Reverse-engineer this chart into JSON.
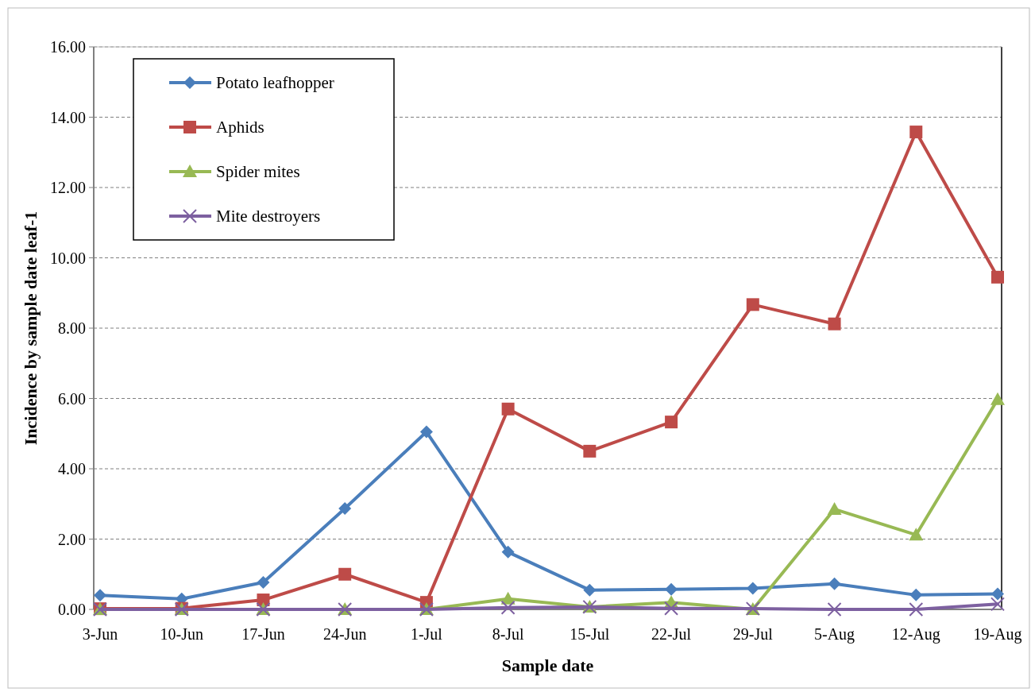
{
  "chart_data": {
    "type": "line",
    "xlabel": "Sample date",
    "ylabel": "Incidence by sample date leaf-1",
    "categories": [
      "3-Jun",
      "10-Jun",
      "17-Jun",
      "24-Jun",
      "1-Jul",
      "8-Jul",
      "15-Jul",
      "22-Jul",
      "29-Jul",
      "5-Aug",
      "12-Aug",
      "19-Aug"
    ],
    "series": [
      {
        "name": "Potato leafhopper",
        "color": "#4a7ebb",
        "marker": "diamond",
        "values": [
          0.4,
          0.3,
          0.77,
          2.87,
          5.05,
          1.63,
          0.55,
          0.57,
          0.6,
          0.73,
          0.41,
          0.44
        ]
      },
      {
        "name": "Aphids",
        "color": "#be4b48",
        "marker": "square",
        "values": [
          0.02,
          0.03,
          0.27,
          1.0,
          0.2,
          5.7,
          4.5,
          5.33,
          8.67,
          8.12,
          13.58,
          9.45
        ]
      },
      {
        "name": "Spider mites",
        "color": "#98b954",
        "marker": "triangle",
        "values": [
          0,
          0,
          0,
          0,
          0,
          0.3,
          0.07,
          0.2,
          0,
          2.85,
          2.12,
          5.97
        ]
      },
      {
        "name": "Mite destroyers",
        "color": "#7d60a0",
        "marker": "cross",
        "values": [
          0,
          0,
          0,
          0,
          0,
          0.05,
          0.07,
          0.03,
          0.02,
          0,
          0,
          0.15
        ]
      }
    ],
    "ylim": [
      0,
      16
    ],
    "yticks": [
      {
        "value": 0,
        "label": "0.00"
      },
      {
        "value": 2,
        "label": "2.00"
      },
      {
        "value": 4,
        "label": "4.00"
      },
      {
        "value": 6,
        "label": "6.00"
      },
      {
        "value": 8,
        "label": "8.00"
      },
      {
        "value": 10,
        "label": "10.00"
      },
      {
        "value": 12,
        "label": "12.00"
      },
      {
        "value": 14,
        "label": "14.00"
      },
      {
        "value": 16,
        "label": "16.00"
      }
    ],
    "grid": "y",
    "legend": "top left"
  }
}
